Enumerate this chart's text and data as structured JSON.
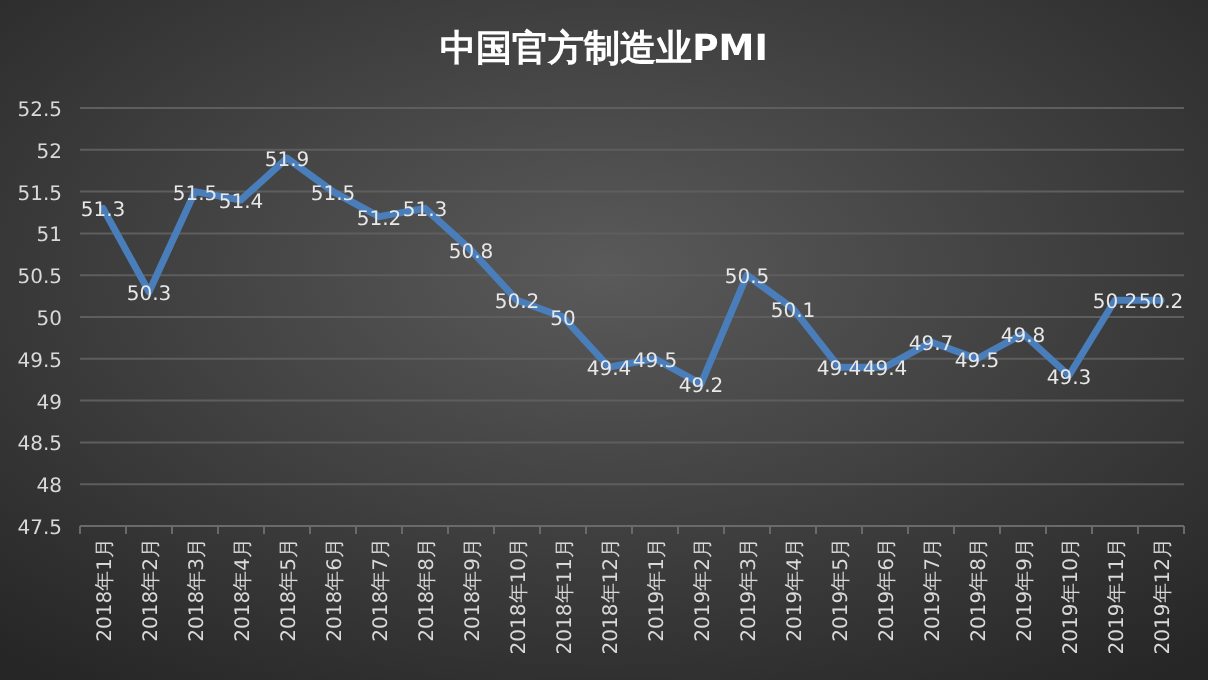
{
  "chart_data": {
    "type": "line",
    "title": "中国官方制造业PMI",
    "categories": [
      "2018年1月",
      "2018年2月",
      "2018年3月",
      "2018年4月",
      "2018年5月",
      "2018年6月",
      "2018年7月",
      "2018年8月",
      "2018年9月",
      "2018年10月",
      "2018年11月",
      "2018年12月",
      "2019年1月",
      "2019年2月",
      "2019年3月",
      "2019年4月",
      "2019年5月",
      "2019年6月",
      "2019年7月",
      "2019年8月",
      "2019年9月",
      "2019年10月",
      "2019年11月",
      "2019年12月"
    ],
    "values": [
      51.3,
      50.3,
      51.5,
      51.4,
      51.9,
      51.5,
      51.2,
      51.3,
      50.8,
      50.2,
      50,
      49.4,
      49.5,
      49.2,
      50.5,
      50.1,
      49.4,
      49.4,
      49.7,
      49.5,
      49.8,
      49.3,
      50.2,
      50.2
    ],
    "color": "#4a7ebb",
    "ylim": [
      47.5,
      52.5
    ],
    "yticks": [
      47.5,
      48,
      48.5,
      49,
      49.5,
      50,
      50.5,
      51,
      51.5,
      52,
      52.5
    ],
    "grid": "y",
    "data_labels": true
  }
}
